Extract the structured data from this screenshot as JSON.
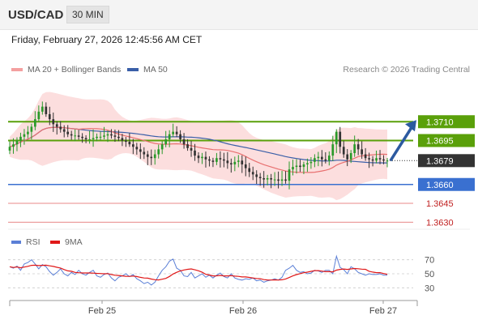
{
  "header": {
    "pair": "USD/CAD",
    "timeframe": "30 MIN"
  },
  "timestamp": "Friday, February 27, 2026 12:45:56 AM CET",
  "legend_top": [
    {
      "label": "MA 20 + Bollinger Bands",
      "color": "#f08080"
    },
    {
      "label": "MA 50",
      "color": "#3a5fa8"
    }
  ],
  "credit": "Research © 2026 Trading Central",
  "legend_rsi": [
    {
      "label": "RSI",
      "color": "#5b7fd6"
    },
    {
      "label": "9MA",
      "color": "#e01818"
    }
  ],
  "colors": {
    "resistance": "#5aa00a",
    "support": "#3a70d0",
    "target": "#e06060",
    "up": "#2a9a2a",
    "down": "#333333",
    "bands": "#fbd8d8"
  },
  "chart_data": [
    {
      "type": "candlestick",
      "x_labels": [
        "Feb 25",
        "Feb 26",
        "Feb 27"
      ],
      "ylim": [
        1.3625,
        1.3745
      ],
      "levels": [
        {
          "label": "1.3710",
          "kind": "resistance",
          "value": 1.371
        },
        {
          "label": "1.3695",
          "kind": "resistance",
          "value": 1.3695
        },
        {
          "label": "1.3679",
          "kind": "current",
          "value": 1.3679
        },
        {
          "label": "1.3660",
          "kind": "support",
          "value": 1.366
        },
        {
          "label": "1.3645",
          "kind": "target",
          "value": 1.3645
        },
        {
          "label": "1.3630",
          "kind": "target",
          "value": 1.363
        }
      ],
      "close": [
        1.369,
        1.3692,
        1.3695,
        1.3698,
        1.37,
        1.3702,
        1.3706,
        1.3712,
        1.3718,
        1.3722,
        1.3716,
        1.3712,
        1.3708,
        1.3706,
        1.3704,
        1.3702,
        1.37,
        1.3699,
        1.3699,
        1.3698,
        1.3697,
        1.3696,
        1.3696,
        1.3697,
        1.3698,
        1.3698,
        1.3699,
        1.37,
        1.3699,
        1.3698,
        1.3697,
        1.3695,
        1.3694,
        1.3692,
        1.369,
        1.3688,
        1.3686,
        1.3684,
        1.3682,
        1.3681,
        1.3684,
        1.3688,
        1.3692,
        1.3696,
        1.37,
        1.3702,
        1.37,
        1.3696,
        1.3692,
        1.3689,
        1.3687,
        1.3683,
        1.3681,
        1.3682,
        1.368,
        1.3679,
        1.3678,
        1.3681,
        1.368,
        1.3679,
        1.3677,
        1.3676,
        1.3678,
        1.3679,
        1.3676,
        1.3673,
        1.367,
        1.3668,
        1.3666,
        1.3665,
        1.3664,
        1.3665,
        1.3664,
        1.3664,
        1.3663,
        1.3664,
        1.3663,
        1.3672,
        1.3674,
        1.3675,
        1.3674,
        1.3676,
        1.3677,
        1.3678,
        1.3681,
        1.3682,
        1.368,
        1.3679,
        1.3683,
        1.3692,
        1.3702,
        1.369,
        1.3684,
        1.368,
        1.3685,
        1.3692,
        1.3688,
        1.3684,
        1.3681,
        1.368,
        1.3679,
        1.3681,
        1.368,
        1.3679,
        1.3679
      ],
      "rsi": [
        60,
        58,
        61,
        55,
        64,
        66,
        70,
        64,
        57,
        63,
        60,
        53,
        48,
        52,
        57,
        50,
        47,
        52,
        49,
        55,
        50,
        48,
        52,
        55,
        47,
        45,
        49,
        51,
        44,
        40,
        45,
        47,
        50,
        46,
        49,
        43,
        40,
        36,
        38,
        34,
        38,
        47,
        55,
        60,
        68,
        71,
        58,
        55,
        47,
        46,
        52,
        44,
        47,
        50,
        45,
        48,
        44,
        48,
        51,
        46,
        44,
        50,
        44,
        42,
        41,
        43,
        42,
        44,
        40,
        41,
        38,
        40,
        41,
        43,
        41,
        45,
        55,
        58,
        62,
        55,
        52,
        53,
        50,
        51,
        55,
        54,
        52,
        55,
        55,
        50,
        75,
        59,
        56,
        50,
        60,
        57,
        52,
        50,
        48,
        50,
        49,
        49,
        50,
        48,
        48
      ],
      "rsi_levels": [
        "70",
        "50",
        "30"
      ]
    }
  ]
}
